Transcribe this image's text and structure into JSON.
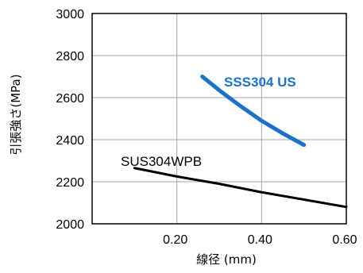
{
  "chart_data": {
    "type": "line",
    "xlabel": "線径 (mm)",
    "ylabel": "引張強さ(MPa)",
    "xlim": [
      0,
      0.6
    ],
    "ylim": [
      2000,
      3000
    ],
    "x_ticks": [
      0.2,
      0.4,
      0.6
    ],
    "x_tick_labels": [
      "0.20",
      "0.40",
      "0.60"
    ],
    "y_ticks": [
      2000,
      2200,
      2400,
      2600,
      2800,
      3000
    ],
    "y_tick_labels": [
      "2000",
      "2200",
      "2400",
      "2600",
      "2800",
      "3000"
    ],
    "grid": true,
    "series": [
      {
        "name": "SSS304 US",
        "color": "#1a73c8",
        "label_color": "#1a73c8",
        "x": [
          0.26,
          0.3,
          0.35,
          0.4,
          0.45,
          0.5
        ],
        "y": [
          2700,
          2635,
          2560,
          2490,
          2430,
          2375
        ]
      },
      {
        "name": "SUS304WPB",
        "color": "#000000",
        "label_color": "#000000",
        "x": [
          0.1,
          0.2,
          0.3,
          0.4,
          0.5,
          0.6
        ],
        "y": [
          2265,
          2225,
          2190,
          2150,
          2115,
          2080
        ]
      }
    ]
  }
}
